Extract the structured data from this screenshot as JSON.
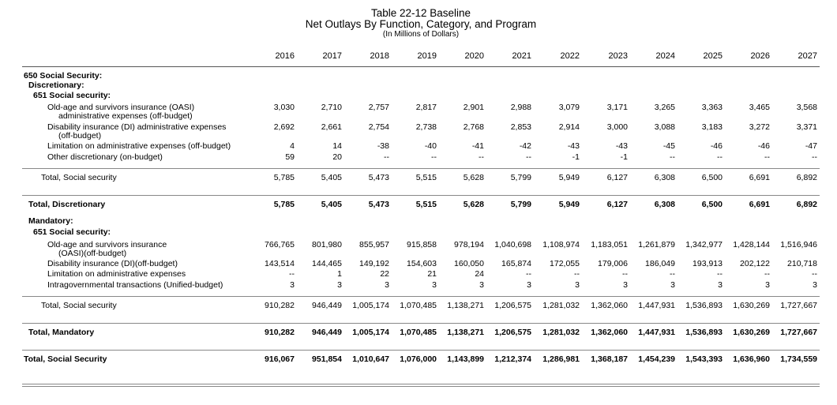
{
  "title": {
    "line1": "Table 22-12 Baseline",
    "line2": "Net Outlays By Function, Category, and Program",
    "line3": "(In Millions of Dollars)"
  },
  "years": [
    "2016",
    "2017",
    "2018",
    "2019",
    "2020",
    "2021",
    "2022",
    "2023",
    "2024",
    "2025",
    "2026",
    "2027"
  ],
  "labels": {
    "function": "650  Social Security:",
    "discretionary": "Discretionary:",
    "sub651_disc": "651  Social security:",
    "mandatory": "Mandatory:",
    "sub651_mand": "651  Social security:"
  },
  "rows": [
    {
      "label": "Old-age and survivors insurance (OASI)",
      "cont": "administrative expenses (off-budget)",
      "values": [
        "3,030",
        "2,710",
        "2,757",
        "2,817",
        "2,901",
        "2,988",
        "3,079",
        "3,171",
        "3,265",
        "3,363",
        "3,465",
        "3,568"
      ]
    },
    {
      "label": "Disability insurance (DI) administrative expenses",
      "cont": "(off-budget)",
      "values": [
        "2,692",
        "2,661",
        "2,754",
        "2,738",
        "2,768",
        "2,853",
        "2,914",
        "3,000",
        "3,088",
        "3,183",
        "3,272",
        "3,371"
      ]
    },
    {
      "label": "Limitation on administrative expenses (off-budget)",
      "values": [
        "4",
        "14",
        "-38",
        "-40",
        "-41",
        "-42",
        "-43",
        "-43",
        "-45",
        "-46",
        "-46",
        "-47"
      ]
    },
    {
      "label": "Other discretionary (on-budget)",
      "values": [
        "59",
        "20",
        "--",
        "--",
        "--",
        "--",
        "-1",
        "-1",
        "--",
        "--",
        "--",
        "--"
      ]
    },
    {
      "label": "Total, Social security",
      "values": [
        "5,785",
        "5,405",
        "5,473",
        "5,515",
        "5,628",
        "5,799",
        "5,949",
        "6,127",
        "6,308",
        "6,500",
        "6,691",
        "6,892"
      ]
    },
    {
      "label": "Total, Discretionary",
      "values": [
        "5,785",
        "5,405",
        "5,473",
        "5,515",
        "5,628",
        "5,799",
        "5,949",
        "6,127",
        "6,308",
        "6,500",
        "6,691",
        "6,892"
      ]
    },
    {
      "label": "Old-age and survivors insurance",
      "cont": "(OASI)(off-budget)",
      "values": [
        "766,765",
        "801,980",
        "855,957",
        "915,858",
        "978,194",
        "1,040,698",
        "1,108,974",
        "1,183,051",
        "1,261,879",
        "1,342,977",
        "1,428,144",
        "1,516,946"
      ]
    },
    {
      "label": "Disability insurance (DI)(off-budget)",
      "values": [
        "143,514",
        "144,465",
        "149,192",
        "154,603",
        "160,050",
        "165,874",
        "172,055",
        "179,006",
        "186,049",
        "193,913",
        "202,122",
        "210,718"
      ]
    },
    {
      "label": "Limitation on administrative expenses",
      "values": [
        "--",
        "1",
        "22",
        "21",
        "24",
        "--",
        "--",
        "--",
        "--",
        "--",
        "--",
        "--"
      ]
    },
    {
      "label": "Intragovernmental transactions (Unified-budget)",
      "values": [
        "3",
        "3",
        "3",
        "3",
        "3",
        "3",
        "3",
        "3",
        "3",
        "3",
        "3",
        "3"
      ]
    },
    {
      "label": "Total, Social security",
      "values": [
        "910,282",
        "946,449",
        "1,005,174",
        "1,070,485",
        "1,138,271",
        "1,206,575",
        "1,281,032",
        "1,362,060",
        "1,447,931",
        "1,536,893",
        "1,630,269",
        "1,727,667"
      ]
    },
    {
      "label": "Total, Mandatory",
      "values": [
        "910,282",
        "946,449",
        "1,005,174",
        "1,070,485",
        "1,138,271",
        "1,206,575",
        "1,281,032",
        "1,362,060",
        "1,447,931",
        "1,536,893",
        "1,630,269",
        "1,727,667"
      ]
    },
    {
      "label": "Total, Social Security",
      "values": [
        "916,067",
        "951,854",
        "1,010,647",
        "1,076,000",
        "1,143,899",
        "1,212,374",
        "1,286,981",
        "1,368,187",
        "1,454,239",
        "1,543,393",
        "1,636,960",
        "1,734,559"
      ]
    }
  ]
}
